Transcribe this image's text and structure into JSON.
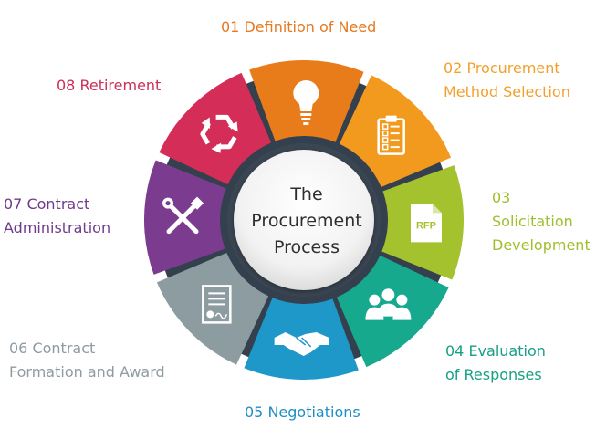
{
  "center": {
    "lines": [
      "The",
      "Procurement",
      "Process"
    ]
  },
  "stages": [
    {
      "name": "01 Definition of Need",
      "lines": [
        "01 Definition of Need"
      ],
      "color": "#e87c1b",
      "label_color": "#e7781d",
      "icon": "lightbulb-icon"
    },
    {
      "name": "02 Procurement Method Selection",
      "lines": [
        "02 Procurement",
        "Method Selection"
      ],
      "color": "#f29a1d",
      "label_color": "#f1a02c",
      "icon": "checklist-clipboard-icon"
    },
    {
      "name": "03 Solicitation Development",
      "lines": [
        "03",
        "Solicitation",
        "Development"
      ],
      "color": "#a4c12e",
      "label_color": "#9fbf2c",
      "icon": "rfp-document-icon",
      "icon_text": "RFP"
    },
    {
      "name": "04 Evaluation of Responses",
      "lines": [
        "04 Evaluation",
        "of Responses"
      ],
      "color": "#16a98d",
      "label_color": "#16a085",
      "icon": "team-people-icon"
    },
    {
      "name": "05 Negotiations",
      "lines": [
        "05 Negotiations"
      ],
      "color": "#1e98c9",
      "label_color": "#1e8fc4",
      "icon": "handshake-icon"
    },
    {
      "name": "06 Contract Formation and Award",
      "lines": [
        "06 Contract",
        "Formation and Award"
      ],
      "color": "#8d9ca1",
      "label_color": "#8e9ba2",
      "icon": "signed-contract-icon"
    },
    {
      "name": "07 Contract Administration",
      "lines": [
        "07 Contract",
        "Administration"
      ],
      "color": "#7b3c8f",
      "label_color": "#6f3a8c",
      "icon": "tools-icon"
    },
    {
      "name": "08 Retirement",
      "lines": [
        "08 Retirement"
      ],
      "color": "#d42d57",
      "label_color": "#cc2e58",
      "icon": "recycle-icon"
    }
  ]
}
